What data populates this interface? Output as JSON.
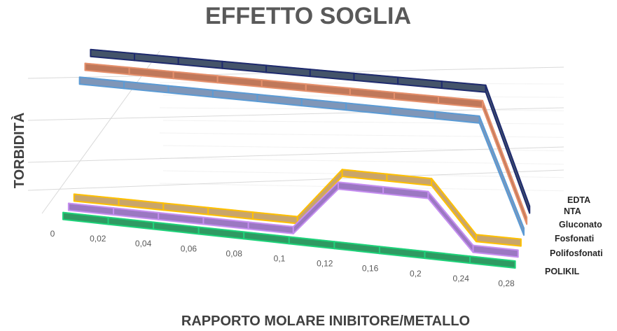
{
  "chart_data": {
    "type": "line",
    "subtype": "3d-line",
    "title": "EFFETTO SOGLIA",
    "xlabel": "RAPPORTO MOLARE INIBITORE/METALLO",
    "ylabel": "TORBIDITÀ",
    "categories": [
      "0",
      "0,02",
      "0,04",
      "0,06",
      "0,08",
      "0,1",
      "0,12",
      "0,16",
      "0,2",
      "0,24",
      "0,28"
    ],
    "grid": true,
    "ylim": [
      0,
      1
    ],
    "series": [
      {
        "name": "EDTA",
        "color": "#44546a",
        "values": [
          1,
          1,
          1,
          1,
          1,
          1,
          1,
          1,
          1,
          1,
          0
        ]
      },
      {
        "name": "NTA",
        "color": "#c0785a",
        "values": [
          1,
          1,
          1,
          1,
          1,
          1,
          1,
          1,
          1,
          1,
          0
        ]
      },
      {
        "name": "Gluconato",
        "color": "#7f96b8",
        "values": [
          1,
          1,
          1,
          1,
          1,
          1,
          1,
          1,
          1,
          1,
          0
        ]
      },
      {
        "name": "Fosfonati",
        "color": "#c9a56a",
        "values": [
          0,
          0,
          0,
          0,
          0,
          0,
          0.5,
          0.5,
          0.5,
          0,
          0
        ]
      },
      {
        "name": "Polifosfonati",
        "color": "#9b78c2",
        "values": [
          0,
          0,
          0,
          0,
          0,
          0,
          0.5,
          0.5,
          0.5,
          0,
          0
        ]
      },
      {
        "name": "POLIKIL",
        "color": "#2f9a62",
        "values": [
          0,
          0,
          0,
          0,
          0,
          0,
          0,
          0,
          0,
          0,
          0
        ]
      }
    ],
    "edge_colors": {
      "EDTA": "#1f2b6e",
      "NTA": "#e58f6b",
      "Gluconato": "#5b9bd5",
      "Fosfonati": "#ffc000",
      "Polifosfonati": "#c58ef0",
      "POLIKIL": "#1ed37a"
    }
  }
}
